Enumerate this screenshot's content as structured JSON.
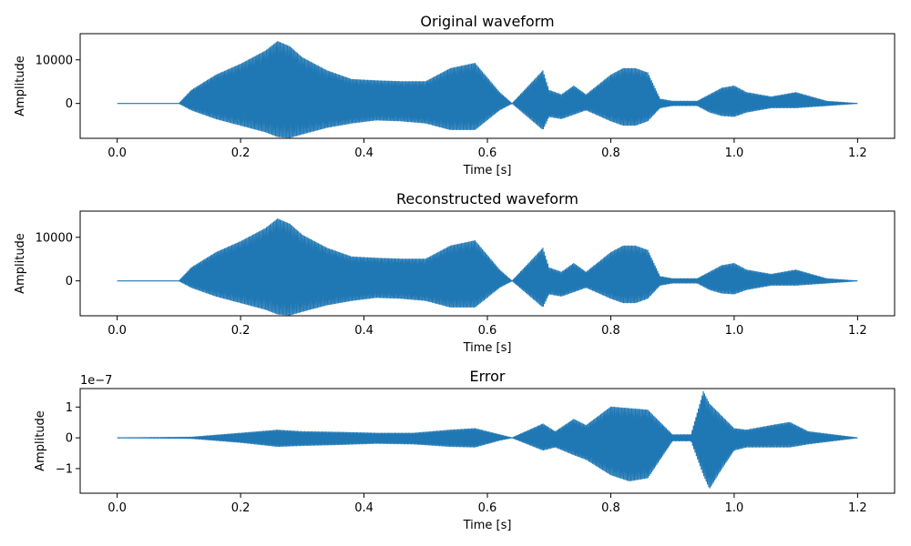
{
  "colors": {
    "line": "#1f77b4",
    "axes": "#000000",
    "background": "#ffffff"
  },
  "chart_data": [
    {
      "type": "line",
      "title": "Original waveform",
      "xlabel": "Time [s]",
      "ylabel": "Amplitude",
      "xlim": [
        -0.06,
        1.26
      ],
      "ylim": [
        -8000,
        16000
      ],
      "xticks": [
        0.0,
        0.2,
        0.4,
        0.6,
        0.8,
        1.0,
        1.2
      ],
      "xtick_labels": [
        "0.0",
        "0.2",
        "0.4",
        "0.6",
        "0.8",
        "1.0",
        "1.2"
      ],
      "yticks": [
        0,
        10000
      ],
      "ytick_labels": [
        "0",
        "10000"
      ],
      "offset_text": "",
      "grid": false,
      "series": [
        {
          "x": [
            0.0,
            0.1,
            0.12,
            0.16,
            0.2,
            0.24,
            0.26,
            0.28,
            0.3,
            0.34,
            0.38,
            0.42,
            0.46,
            0.5,
            0.54,
            0.58,
            0.62,
            0.64,
            0.69,
            0.7,
            0.72,
            0.74,
            0.76,
            0.8,
            0.82,
            0.84,
            0.86,
            0.88,
            0.9,
            0.94,
            0.96,
            0.98,
            1.0,
            1.02,
            1.06,
            1.1,
            1.15,
            1.2
          ],
          "upper": [
            0,
            0,
            3000,
            6500,
            9000,
            12000,
            14200,
            13000,
            10500,
            7500,
            5500,
            5200,
            5000,
            5000,
            8000,
            9200,
            2500,
            0,
            7500,
            3000,
            2000,
            4000,
            2000,
            6500,
            8000,
            8000,
            7000,
            1000,
            500,
            500,
            2000,
            3500,
            4000,
            2500,
            1500,
            2500,
            500,
            0
          ],
          "lower": [
            0,
            0,
            -1500,
            -3500,
            -5000,
            -6500,
            -7600,
            -7800,
            -7000,
            -5500,
            -4500,
            -3800,
            -4000,
            -4500,
            -6000,
            -6000,
            -1500,
            0,
            -6000,
            -3000,
            -3500,
            -2500,
            -1500,
            -4000,
            -5000,
            -5000,
            -4000,
            -1000,
            -500,
            -500,
            -2000,
            -2800,
            -3000,
            -2000,
            -1000,
            -1000,
            -500,
            0
          ]
        }
      ]
    },
    {
      "type": "line",
      "title": "Reconstructed waveform",
      "xlabel": "Time [s]",
      "ylabel": "Amplitude",
      "xlim": [
        -0.06,
        1.26
      ],
      "ylim": [
        -8000,
        16000
      ],
      "xticks": [
        0.0,
        0.2,
        0.4,
        0.6,
        0.8,
        1.0,
        1.2
      ],
      "xtick_labels": [
        "0.0",
        "0.2",
        "0.4",
        "0.6",
        "0.8",
        "1.0",
        "1.2"
      ],
      "yticks": [
        0,
        10000
      ],
      "ytick_labels": [
        "0",
        "10000"
      ],
      "offset_text": "",
      "grid": false,
      "series": [
        {
          "x": [
            0.0,
            0.1,
            0.12,
            0.16,
            0.2,
            0.24,
            0.26,
            0.28,
            0.3,
            0.34,
            0.38,
            0.42,
            0.46,
            0.5,
            0.54,
            0.58,
            0.62,
            0.64,
            0.69,
            0.7,
            0.72,
            0.74,
            0.76,
            0.8,
            0.82,
            0.84,
            0.86,
            0.88,
            0.9,
            0.94,
            0.96,
            0.98,
            1.0,
            1.02,
            1.06,
            1.1,
            1.15,
            1.2
          ],
          "upper": [
            0,
            0,
            3000,
            6500,
            9000,
            12000,
            14200,
            13000,
            10500,
            7500,
            5500,
            5200,
            5000,
            5000,
            8000,
            9200,
            2500,
            0,
            7500,
            3000,
            2000,
            4000,
            2000,
            6500,
            8000,
            8000,
            7000,
            1000,
            500,
            500,
            2000,
            3500,
            4000,
            2500,
            1500,
            2500,
            500,
            0
          ],
          "lower": [
            0,
            0,
            -1500,
            -3500,
            -5000,
            -6500,
            -7600,
            -7800,
            -7000,
            -5500,
            -4500,
            -3800,
            -4000,
            -4500,
            -6000,
            -6000,
            -1500,
            0,
            -6000,
            -3000,
            -3500,
            -2500,
            -1500,
            -4000,
            -5000,
            -5000,
            -4000,
            -1000,
            -500,
            -500,
            -2000,
            -2800,
            -3000,
            -2000,
            -1000,
            -1000,
            -500,
            0
          ]
        }
      ]
    },
    {
      "type": "line",
      "title": "Error",
      "xlabel": "Time [s]",
      "ylabel": "Amplitude",
      "xlim": [
        -0.06,
        1.26
      ],
      "ylim": [
        -1.8,
        1.6
      ],
      "xticks": [
        0.0,
        0.2,
        0.4,
        0.6,
        0.8,
        1.0,
        1.2
      ],
      "xtick_labels": [
        "0.0",
        "0.2",
        "0.4",
        "0.6",
        "0.8",
        "1.0",
        "1.2"
      ],
      "yticks": [
        -1,
        0,
        1
      ],
      "ytick_labels": [
        "−1",
        "0",
        "1"
      ],
      "offset_text": "1e−7",
      "grid": false,
      "series": [
        {
          "x": [
            0.0,
            0.12,
            0.2,
            0.26,
            0.3,
            0.36,
            0.42,
            0.48,
            0.54,
            0.58,
            0.62,
            0.64,
            0.69,
            0.71,
            0.74,
            0.76,
            0.8,
            0.83,
            0.86,
            0.88,
            0.9,
            0.93,
            0.95,
            0.96,
            0.98,
            1.0,
            1.02,
            1.06,
            1.09,
            1.12,
            1.16,
            1.2
          ],
          "upper": [
            0,
            0.02,
            0.15,
            0.25,
            0.2,
            0.18,
            0.15,
            0.15,
            0.25,
            0.3,
            0.1,
            0,
            0.45,
            0.2,
            0.6,
            0.4,
            1.0,
            0.95,
            0.9,
            0.5,
            0.1,
            0.1,
            1.5,
            1.1,
            0.7,
            0.3,
            0.25,
            0.4,
            0.5,
            0.2,
            0.1,
            0
          ],
          "lower": [
            0,
            -0.02,
            -0.15,
            -0.28,
            -0.25,
            -0.22,
            -0.18,
            -0.2,
            -0.28,
            -0.3,
            -0.08,
            0,
            -0.4,
            -0.3,
            -0.55,
            -0.7,
            -1.2,
            -1.4,
            -1.3,
            -0.7,
            -0.1,
            -0.1,
            -1.2,
            -1.65,
            -1.0,
            -0.4,
            -0.3,
            -0.3,
            -0.3,
            -0.2,
            -0.1,
            0
          ]
        }
      ]
    }
  ]
}
